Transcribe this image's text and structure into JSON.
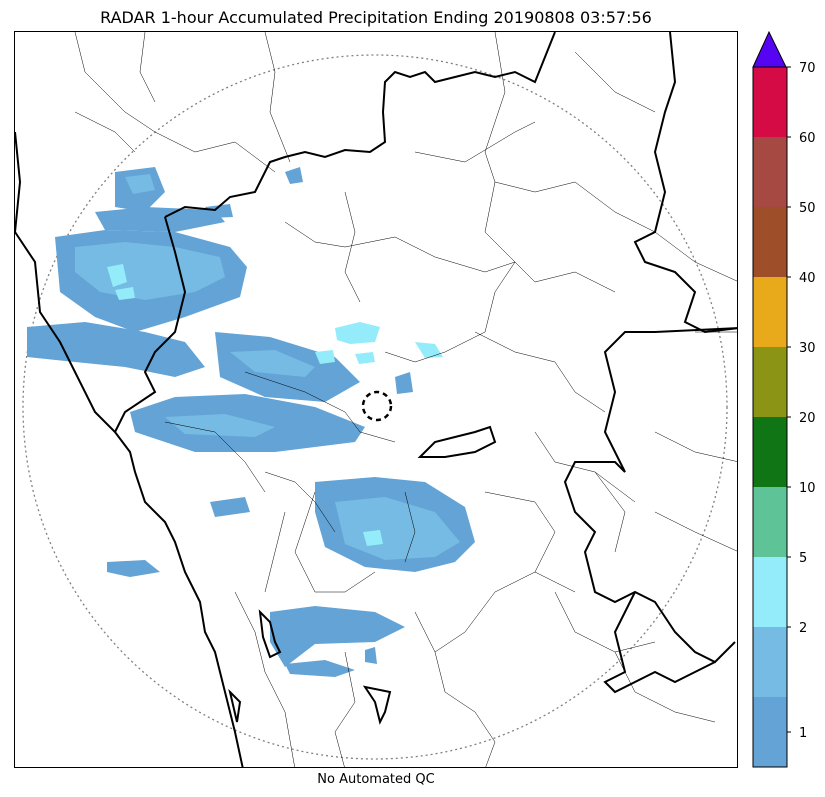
{
  "title": "RADAR 1-hour Accumulated Precipitation Ending 20190808 03:57:56",
  "footer_note": "No Automated QC",
  "colorbar": {
    "ticks": [
      "1",
      "2",
      "5",
      "10",
      "20",
      "30",
      "40",
      "50",
      "60",
      "70"
    ],
    "colors": [
      "#63a3d6",
      "#75bbe3",
      "#94ecfa",
      "#5ec498",
      "#107515",
      "#8c9415",
      "#e8a91b",
      "#9e4f29",
      "#a74943",
      "#d40b44"
    ],
    "extend_color": "#5605f2"
  },
  "map": {
    "range_ring_color": "#808080",
    "boundary_color": "#000000",
    "echo_colors": {
      "light": "#63a3d6",
      "medium": "#75bbe3",
      "heavy": "#94ecfa"
    }
  }
}
